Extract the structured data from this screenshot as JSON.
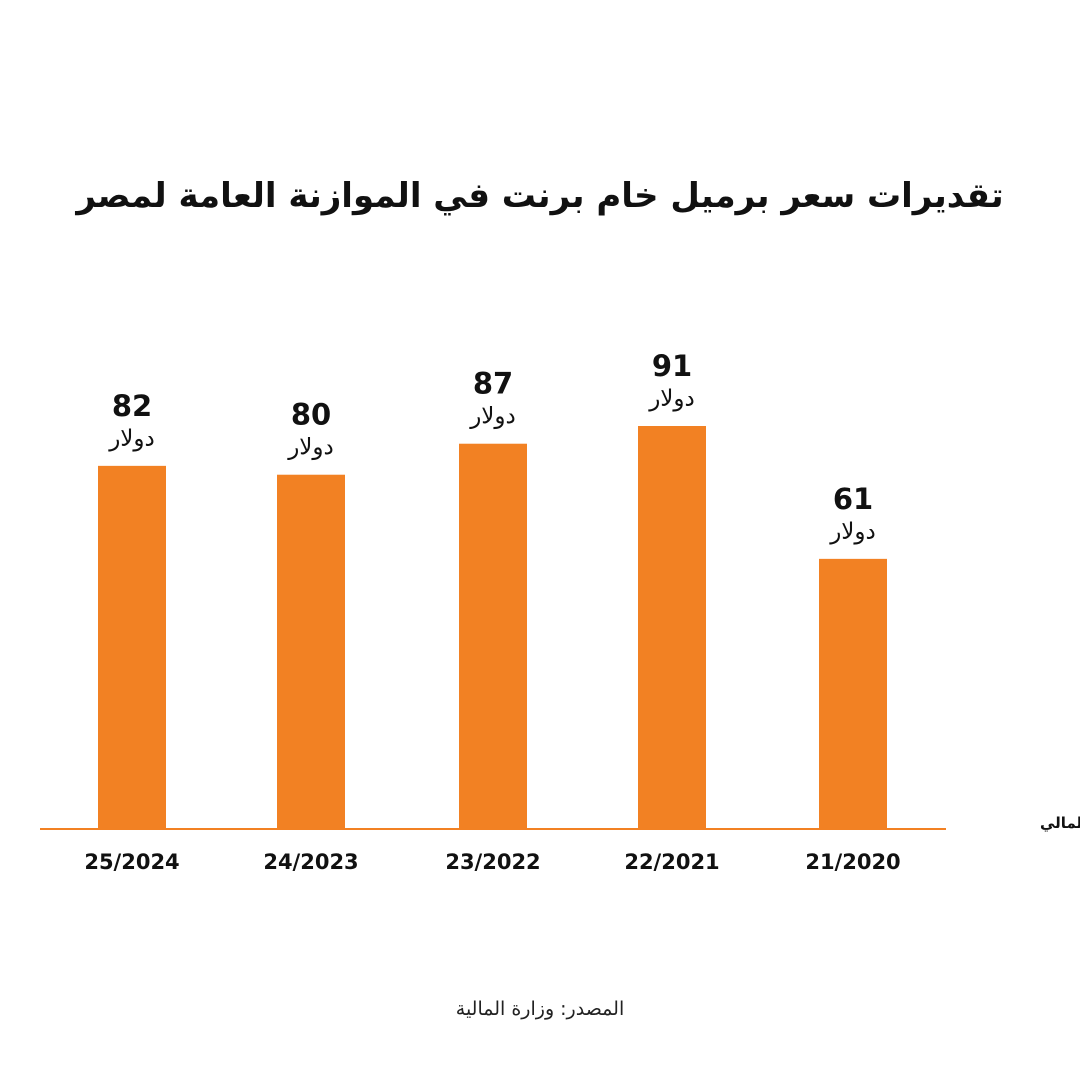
{
  "chart_data": {
    "type": "bar",
    "title": "تقديرات سعر برميل خام برنت في الموازنة العامة لمصر",
    "xlabel": "العام المالي",
    "ylabel": "",
    "categories": [
      "25/2024",
      "24/2023",
      "23/2022",
      "22/2021",
      "21/2020"
    ],
    "values": [
      82,
      80,
      87,
      91,
      61
    ],
    "value_unit": "دولار",
    "ylim": [
      0,
      100
    ],
    "bar_color": "#f28123",
    "axis_color": "#f28123",
    "grid": false,
    "legend": "none"
  },
  "source": "المصدر: وزارة المالية"
}
